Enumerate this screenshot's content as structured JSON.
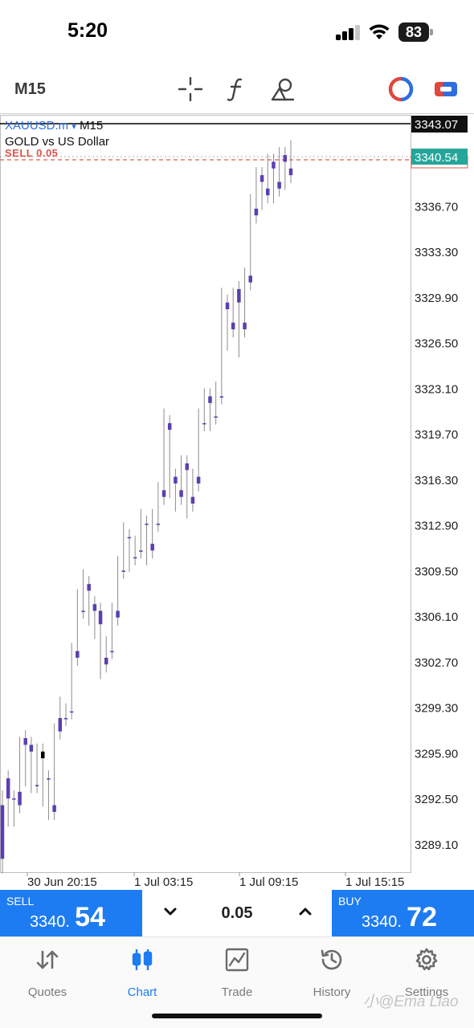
{
  "status_bar": {
    "time": "5:20",
    "battery": "83"
  },
  "toolbar": {
    "timeframe": "M15",
    "icons": [
      "crosshair-icon",
      "indicator-f-icon",
      "objects-icon",
      "one-click-trading-icon",
      "trade-mode-icon"
    ]
  },
  "chart": {
    "symbol": "XAUUSD.m",
    "symbol_arrow": "▾",
    "timeframe": "M15",
    "description": "GOLD vs US Dollar",
    "order_label": "SELL 0.05",
    "price_labels": [
      "3336.70",
      "3333.30",
      "3329.90",
      "3326.50",
      "3323.10",
      "3319.70",
      "3316.30",
      "3312.90",
      "3309.50",
      "3306.10",
      "3302.70",
      "3299.30",
      "3295.90",
      "3292.50",
      "3289.10"
    ],
    "high_line_label": "3343.07",
    "bid_label": "3340.54",
    "time_labels": [
      "30 Jun 20:15",
      "1 Jul 03:15",
      "1 Jul 09:15",
      "1 Jul 15:15"
    ],
    "colors": {
      "bull": "#5b3fb0",
      "bear": "#000000",
      "bid": "#26a69a",
      "order": "#e05a4f"
    }
  },
  "chart_data": {
    "type": "candlestick",
    "y_axis": {
      "min": 3287.0,
      "max": 3343.5
    },
    "x_tick_labels": [
      "30 Jun 20:15",
      "1 Jul 03:15",
      "1 Jul 09:15",
      "1 Jul 15:15"
    ],
    "candles": [
      [
        3288.0,
        3292.0,
        3287.5,
        3292.5
      ],
      [
        3292.5,
        3294.0,
        3292.5,
        3291.0
      ],
      [
        3292.5,
        3292.5,
        3291.0,
        3292.0
      ],
      [
        3292.0,
        3293.0,
        3294.0,
        3296.5
      ],
      [
        3296.5,
        3297.0,
        3295.0,
        3294.0
      ],
      [
        3296.0,
        3296.5,
        3294.0,
        3293.5
      ],
      [
        3293.5,
        3293.5,
        3295.0,
        3296.0
      ],
      [
        3296.0,
        3295.5,
        3293.5,
        3292.5
      ],
      [
        3294.0,
        3294.0,
        3293.5,
        3291.5
      ],
      [
        3291.5,
        3292.0,
        3297.0,
        3297.5
      ],
      [
        3297.5,
        3298.5,
        3298.0,
        3299.5
      ],
      [
        3298.5,
        3298.5,
        3299.0,
        3299.0
      ],
      [
        3299.0,
        3299.0,
        3303.0,
        3303.5
      ],
      [
        3303.0,
        3303.5,
        3306.5,
        3307.5
      ],
      [
        3306.5,
        3306.5,
        3308.0,
        3309.0
      ],
      [
        3308.0,
        3308.5,
        3306.5,
        3306.0
      ],
      [
        3306.5,
        3307.0,
        3305.5,
        3305.0
      ],
      [
        3305.5,
        3306.5,
        3302.5,
        3302.0
      ],
      [
        3302.5,
        3303.0,
        3303.5,
        3304.0
      ],
      [
        3303.5,
        3303.5,
        3306.0,
        3306.5
      ],
      [
        3306.0,
        3306.5,
        3309.5,
        3310.0
      ],
      [
        3309.5,
        3309.5,
        3312.0,
        3312.5
      ],
      [
        3312.0,
        3312.0,
        3310.5,
        3310.0
      ],
      [
        3310.5,
        3310.5,
        3311.0,
        3311.5
      ],
      [
        3311.0,
        3311.0,
        3313.0,
        3313.5
      ],
      [
        3313.0,
        3313.0,
        3311.0,
        3310.5
      ],
      [
        3311.0,
        3311.5,
        3313.0,
        3313.5
      ],
      [
        3313.0,
        3313.0,
        3315.0,
        3315.5
      ],
      [
        3315.0,
        3315.5,
        3320.0,
        3321.0
      ],
      [
        3320.0,
        3320.5,
        3316.0,
        3315.5
      ],
      [
        3316.0,
        3316.5,
        3315.0,
        3314.5
      ],
      [
        3315.0,
        3315.5,
        3317.0,
        3317.5
      ],
      [
        3317.0,
        3317.5,
        3314.5,
        3314.0
      ],
      [
        3314.5,
        3315.0,
        3316.0,
        3316.5
      ],
      [
        3316.0,
        3316.5,
        3320.5,
        3321.0
      ],
      [
        3320.5,
        3320.5,
        3322.0,
        3322.5
      ],
      [
        3322.0,
        3322.5,
        3321.0,
        3320.5
      ],
      [
        3321.0,
        3321.0,
        3322.5,
        3323.0
      ],
      [
        3322.5,
        3322.5,
        3329.0,
        3330.0
      ],
      [
        3329.0,
        3329.5,
        3327.0,
        3326.5
      ],
      [
        3327.5,
        3328.0,
        3329.5,
        3330.0
      ],
      [
        3329.5,
        3330.5,
        3327.0,
        3326.0
      ],
      [
        3327.5,
        3328.0,
        3331.0,
        3331.5
      ],
      [
        3331.0,
        3331.5,
        3336.0,
        3337.0
      ],
      [
        3336.0,
        3336.5,
        3338.5,
        3339.0
      ],
      [
        3338.5,
        3339.0,
        3337.5,
        3337.0
      ],
      [
        3337.5,
        3338.0,
        3339.5,
        3340.0
      ],
      [
        3339.5,
        3340.0,
        3338.0,
        3337.5
      ],
      [
        3338.0,
        3338.5,
        3340.0,
        3340.5
      ],
      [
        3340.0,
        3340.5,
        3339.0,
        3338.5
      ],
      [
        3339.0,
        3339.5,
        3340.5,
        3341.0
      ]
    ],
    "candle_format": "[open, close, low/high range approx as given: first=open, second=close]"
  },
  "trade": {
    "sell_label": "SELL",
    "sell_price_small": "3340.",
    "sell_price_big": "54",
    "volume": "0.05",
    "buy_label": "BUY",
    "buy_price_small": "3340.",
    "buy_price_big": "72"
  },
  "nav": {
    "items": [
      {
        "label": "Quotes",
        "icon": "quotes-arrows-icon"
      },
      {
        "label": "Chart",
        "icon": "chart-candles-icon"
      },
      {
        "label": "Trade",
        "icon": "trade-chart-icon"
      },
      {
        "label": "History",
        "icon": "history-clock-icon"
      },
      {
        "label": "Settings",
        "icon": "settings-gear-icon"
      }
    ]
  },
  "watermark": "小@Ema Liao"
}
